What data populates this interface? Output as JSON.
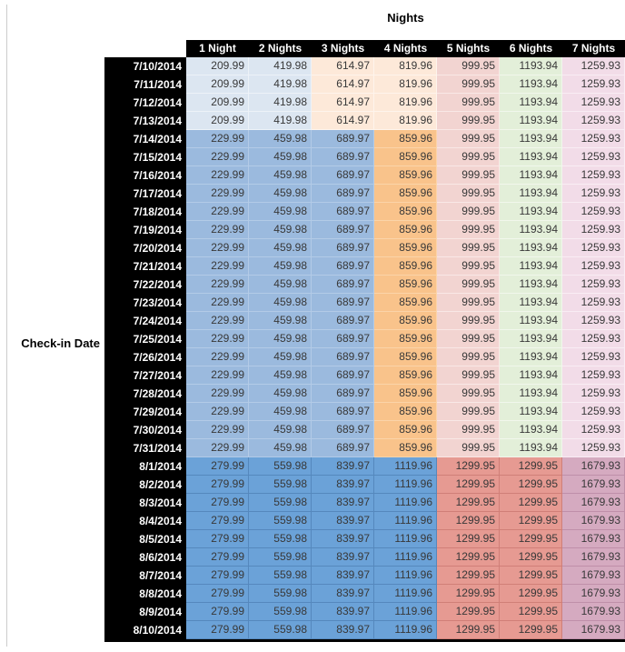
{
  "chart_data": {
    "type": "table",
    "title": "Nights",
    "row_axis_label": "Check-in Date",
    "columns": [
      "1 Night",
      "2 Nights",
      "3 Nights",
      "4 Nights",
      "5 Nights",
      "6 Nights",
      "7 Nights"
    ],
    "chrome": {
      "header_bg": "#000000",
      "header_text": "#ffffff",
      "date_bg": "#000000",
      "date_text": "#ffffff",
      "value_text": "#383838"
    },
    "styles": {
      "blue-pale": {
        "bg": "#dce6f1",
        "line": "#edf2f8"
      },
      "orange-pale": {
        "bg": "#fde9d9",
        "line": "#fef4ec"
      },
      "red-pale": {
        "bg": "#f2d4d1",
        "line": "#f9e8e6"
      },
      "green-pale": {
        "bg": "#e3efd9",
        "line": "#f1f7ec"
      },
      "pink-pale": {
        "bg": "#f2dce8",
        "line": "#f9edf4"
      },
      "blue-mid": {
        "bg": "#9bbade",
        "line": "#b3cbe7"
      },
      "orange-mid": {
        "bg": "#f9c38b",
        "line": "#fbd4a9"
      },
      "blue-strong": {
        "bg": "#6ba2d8",
        "line": "#5588bd"
      },
      "salmon": {
        "bg": "#e69a92",
        "line": "#d07f78"
      },
      "mauve": {
        "bg": "#d5aac0",
        "line": "#bf8fa9"
      }
    },
    "blocks": [
      {
        "dates": [
          "7/10/2014",
          "7/11/2014",
          "7/12/2014",
          "7/13/2014"
        ],
        "values": [
          "209.99",
          "419.98",
          "614.97",
          "819.96",
          "999.95",
          "1193.94",
          "1259.93"
        ],
        "cell_styles": [
          "blue-pale",
          "blue-pale",
          "orange-pale",
          "orange-pale",
          "red-pale",
          "green-pale",
          "pink-pale"
        ]
      },
      {
        "dates": [
          "7/14/2014",
          "7/15/2014",
          "7/16/2014",
          "7/17/2014",
          "7/18/2014",
          "7/19/2014",
          "7/20/2014",
          "7/21/2014",
          "7/22/2014",
          "7/23/2014",
          "7/24/2014",
          "7/25/2014",
          "7/26/2014",
          "7/27/2014",
          "7/28/2014",
          "7/29/2014",
          "7/30/2014",
          "7/31/2014"
        ],
        "values": [
          "229.99",
          "459.98",
          "689.97",
          "859.96",
          "999.95",
          "1193.94",
          "1259.93"
        ],
        "cell_styles": [
          "blue-mid",
          "blue-mid",
          "blue-mid",
          "orange-mid",
          "red-pale",
          "green-pale",
          "pink-pale"
        ]
      },
      {
        "dates": [
          "8/1/2014",
          "8/2/2014",
          "8/3/2014",
          "8/4/2014",
          "8/5/2014",
          "8/6/2014",
          "8/7/2014",
          "8/8/2014",
          "8/9/2014",
          "8/10/2014"
        ],
        "values": [
          "279.99",
          "559.98",
          "839.97",
          "1119.96",
          "1299.95",
          "1299.95",
          "1679.93"
        ],
        "cell_styles": [
          "blue-strong",
          "blue-strong",
          "blue-strong",
          "blue-strong",
          "salmon",
          "salmon",
          "mauve"
        ]
      }
    ]
  }
}
